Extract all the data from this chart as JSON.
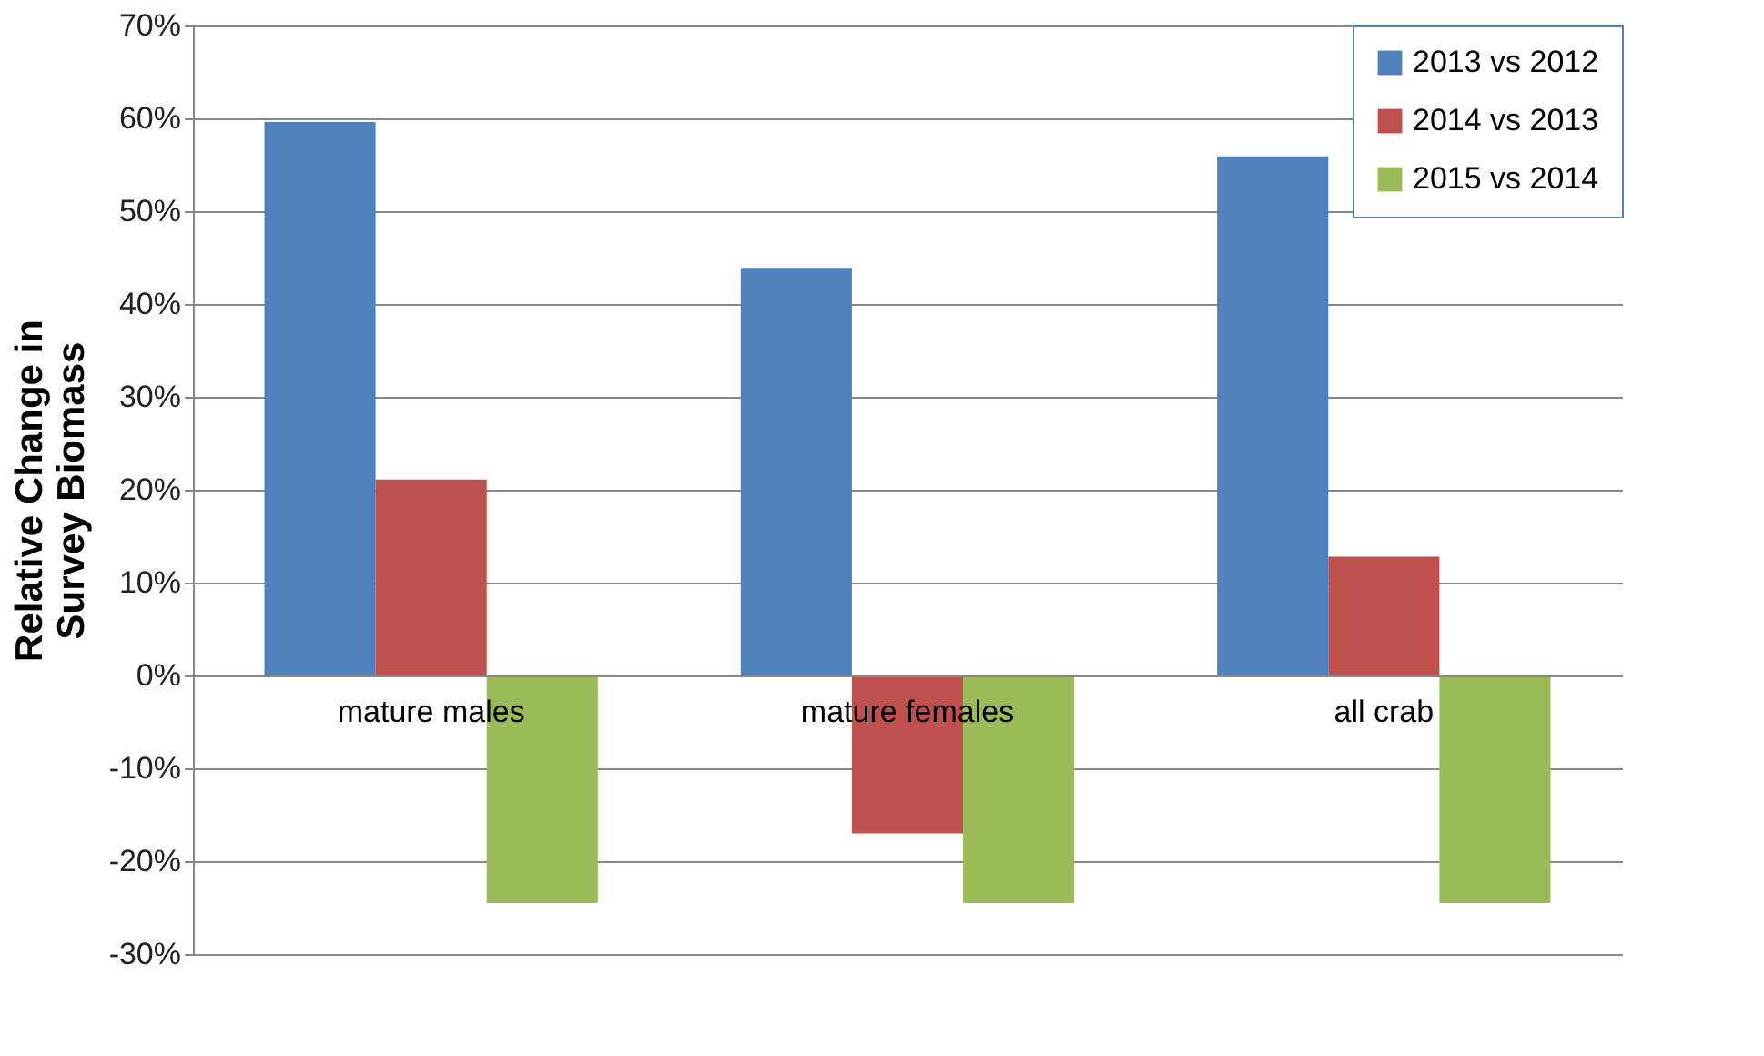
{
  "chart_data": {
    "type": "bar",
    "ylabel": "Relative Change in\nSurvey Biomass",
    "categories": [
      "mature males",
      "mature females",
      "all crab"
    ],
    "series": [
      {
        "name": "2013 vs 2012",
        "color": "#4f81bd",
        "values": [
          59.6,
          43.9,
          55.9
        ]
      },
      {
        "name": "2014 vs 2013",
        "color": "#c0504d",
        "values": [
          21.1,
          -17.0,
          12.8
        ]
      },
      {
        "name": "2015 vs 2014",
        "color": "#9bbb59",
        "values": [
          -24.5,
          -24.5,
          -24.5
        ]
      }
    ],
    "ylim": [
      -30,
      70
    ],
    "yticks": [
      {
        "value": -30,
        "label": "-30%"
      },
      {
        "value": -20,
        "label": "-20%"
      },
      {
        "value": -10,
        "label": "-10%"
      },
      {
        "value": 0,
        "label": "0%"
      },
      {
        "value": 10,
        "label": "10%"
      },
      {
        "value": 20,
        "label": "20%"
      },
      {
        "value": 30,
        "label": "30%"
      },
      {
        "value": 40,
        "label": "40%"
      },
      {
        "value": 50,
        "label": "50%"
      },
      {
        "value": 60,
        "label": "60%"
      },
      {
        "value": 70,
        "label": "70%"
      }
    ],
    "grid": "y",
    "legend": "top right"
  }
}
